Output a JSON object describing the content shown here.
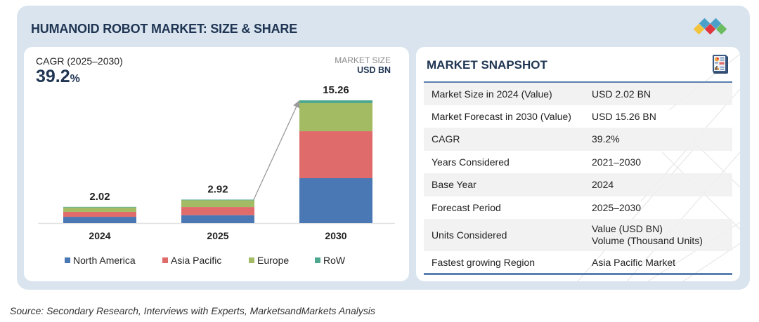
{
  "title": "HUMANOID ROBOT MARKET: SIZE & SHARE",
  "logo_icon": "marketsandmarkets-diamonds-logo",
  "cagr": {
    "label": "CAGR (2025–2030)",
    "value": "39.2",
    "unit": "%"
  },
  "market_size": {
    "label": "MARKET SIZE",
    "unit": "USD BN"
  },
  "chart_data": {
    "type": "bar",
    "stacked": true,
    "title": "HUMANOID ROBOT MARKET: SIZE & SHARE",
    "xlabel": "",
    "ylabel": "USD BN",
    "categories": [
      "2024",
      "2025",
      "2030"
    ],
    "totals": [
      "2.02",
      "2.92",
      "15.26"
    ],
    "total_values": [
      2.02,
      2.92,
      15.26
    ],
    "series": [
      {
        "name": "North America",
        "color": "#4a78b4",
        "values": [
          0.78,
          0.98,
          5.58
        ]
      },
      {
        "name": "Asia Pacific",
        "color": "#e06b6b",
        "values": [
          0.62,
          1.02,
          5.84
        ]
      },
      {
        "name": "Europe",
        "color": "#a3bb63",
        "values": [
          0.54,
          0.84,
          3.49
        ]
      },
      {
        "name": "RoW",
        "color": "#4ea88f",
        "values": [
          0.08,
          0.08,
          0.35
        ]
      }
    ],
    "ylim": [
      0,
      15.26
    ],
    "grid": false,
    "legend_position": "bottom",
    "annotation": "growth arrow from 2025 to 2030"
  },
  "legend": [
    {
      "label": "North America",
      "color": "#4a78b4"
    },
    {
      "label": "Asia Pacific",
      "color": "#e06b6b"
    },
    {
      "label": "Europe",
      "color": "#a3bb63"
    },
    {
      "label": "RoW",
      "color": "#4ea88f"
    }
  ],
  "snapshot": {
    "title": "MARKET SNAPSHOT",
    "icon": "report-document-icon",
    "rows": [
      {
        "label": "Market Size in 2024 (Value)",
        "value": "USD 2.02 BN"
      },
      {
        "label": "Market Forecast in 2030 (Value)",
        "value": "USD 15.26 BN"
      },
      {
        "label": "CAGR",
        "value": "39.2%"
      },
      {
        "label": "Years Considered",
        "value": "2021–2030"
      },
      {
        "label": "Base Year",
        "value": "2024"
      },
      {
        "label": "Forecast Period",
        "value": "2025–2030"
      },
      {
        "label": "Units Considered",
        "value": "Value (USD BN)",
        "value2": "Volume (Thousand Units)"
      },
      {
        "label": "Fastest growing Region",
        "value": "Asia Pacific Market"
      }
    ]
  },
  "source": "Source: Secondary Research, Interviews with Experts, MarketsandMarkets Analysis",
  "colors": {
    "navy": "#1f3552",
    "panel_bg": "#d9e4ef",
    "rule": "#5b7fae"
  }
}
